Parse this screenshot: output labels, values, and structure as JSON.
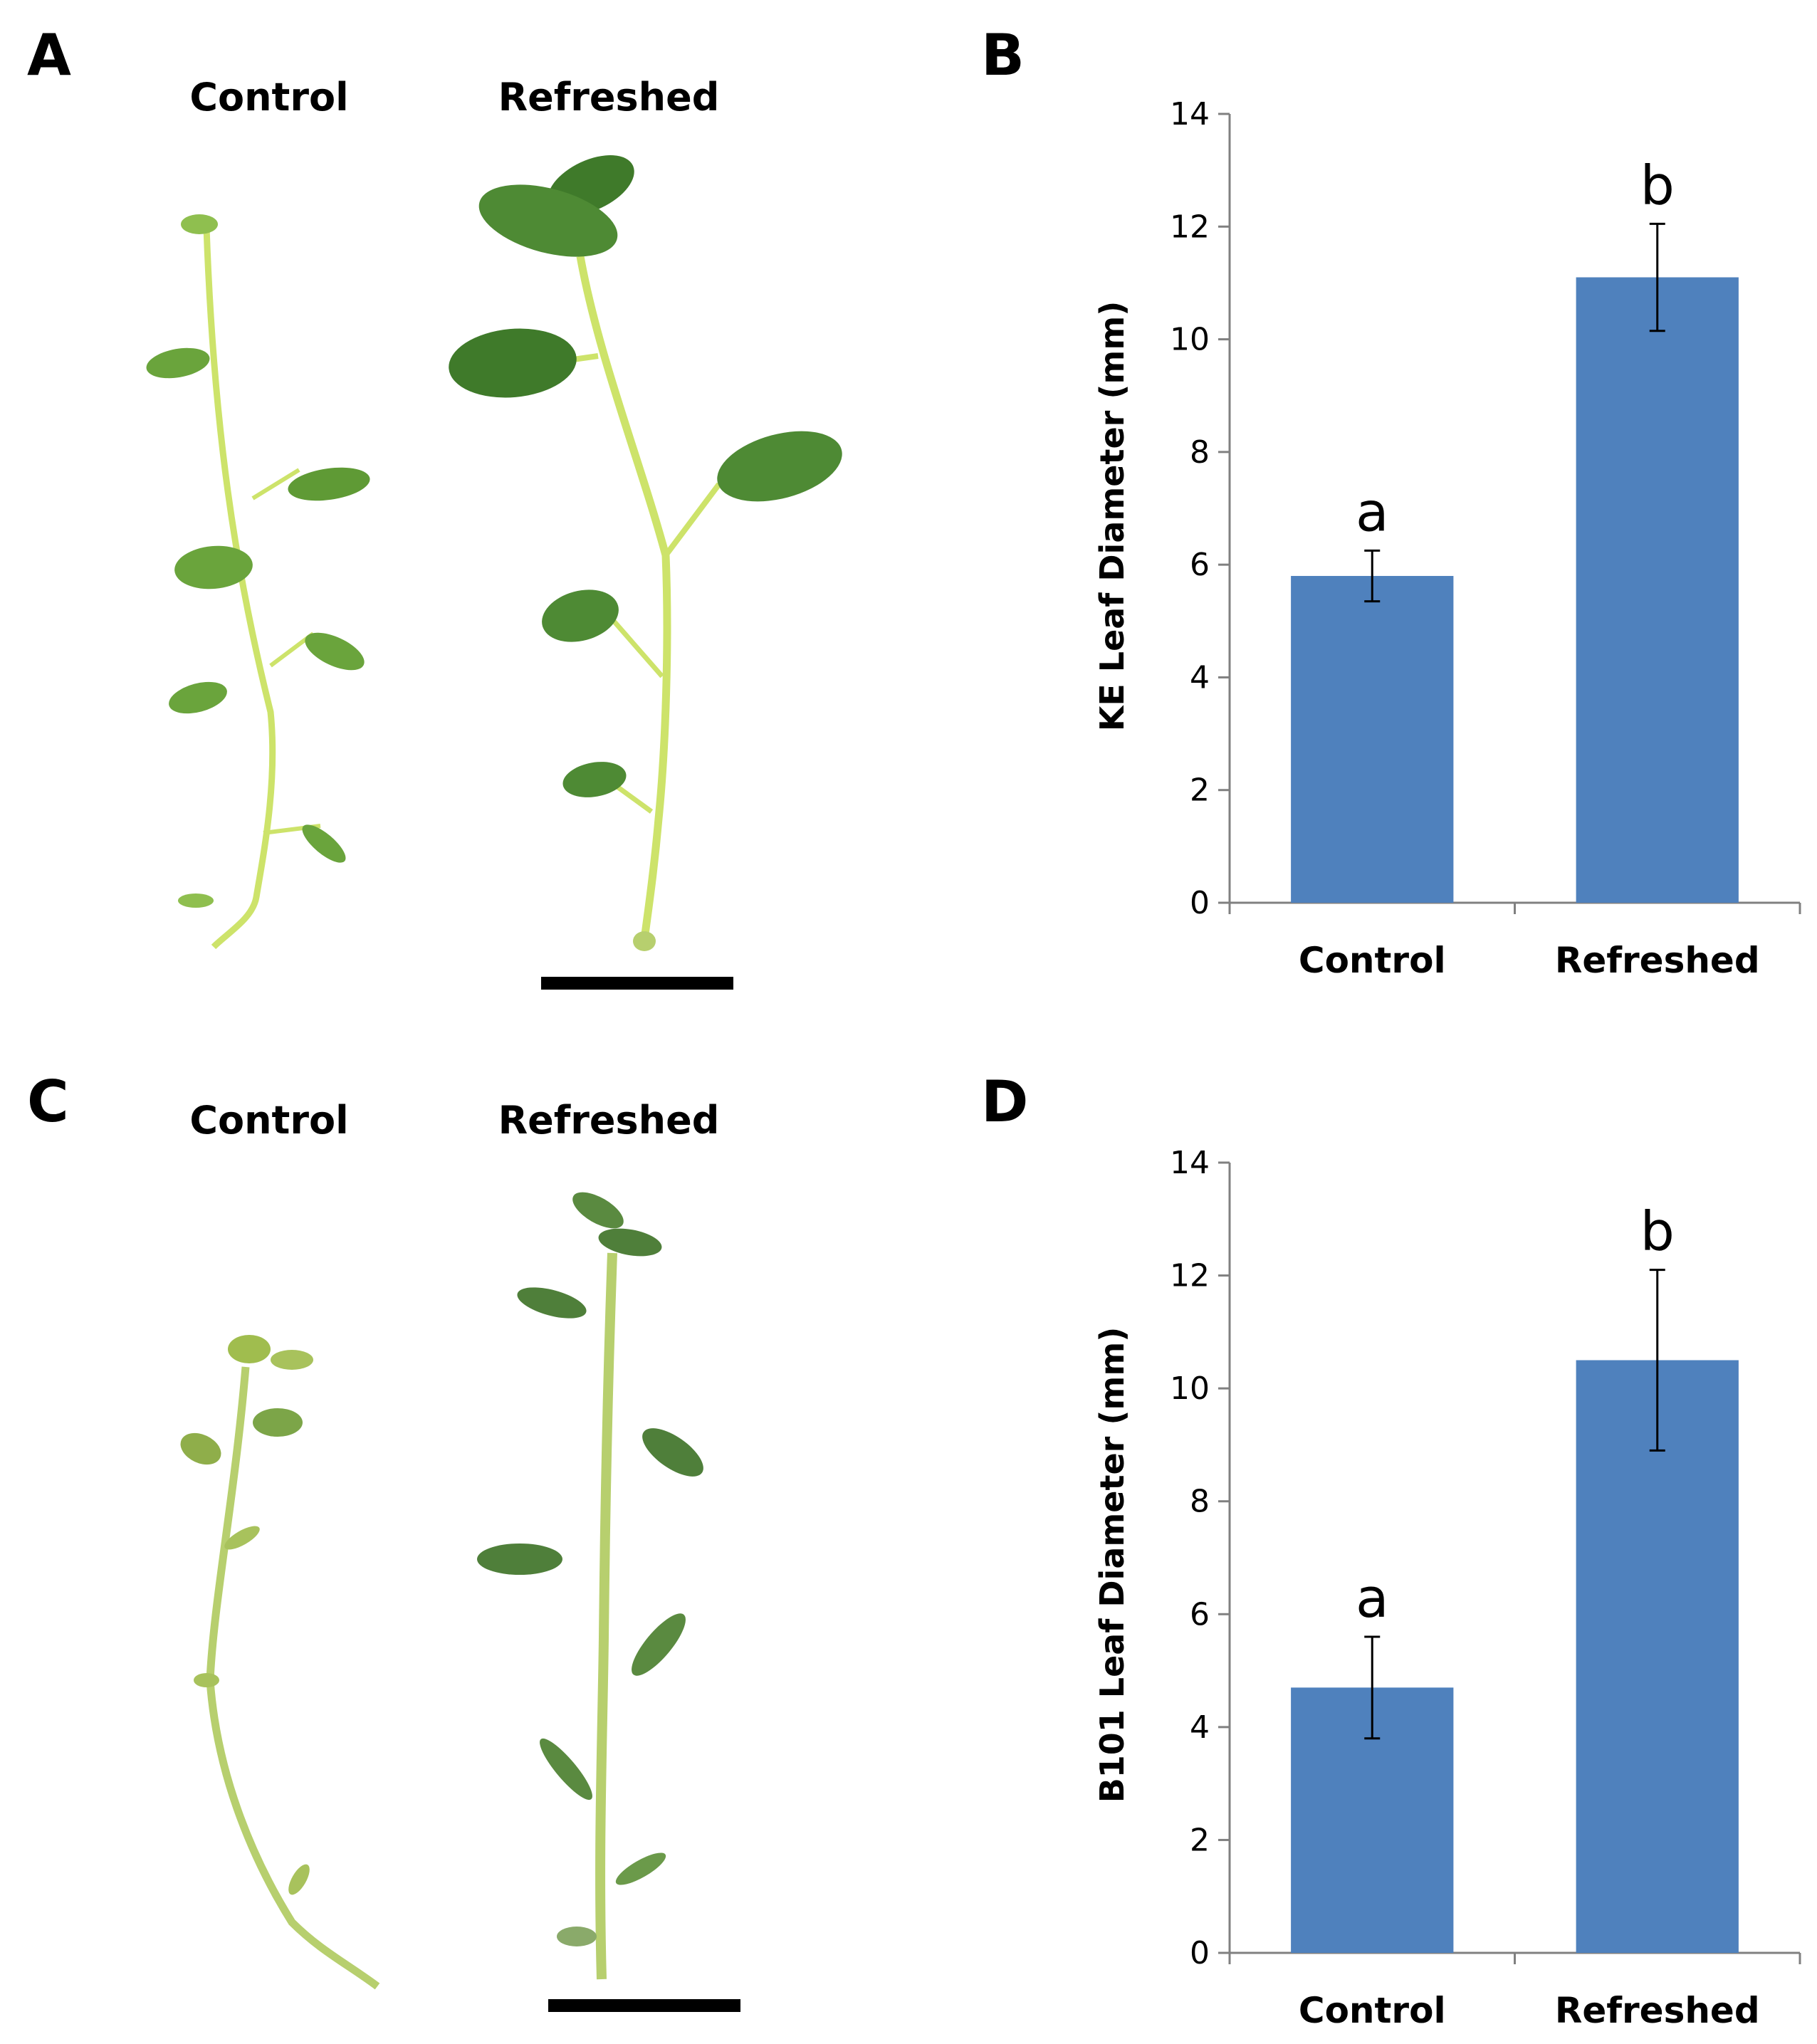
{
  "panels": {
    "a": {
      "letter": "A",
      "labels": [
        "Control",
        "Refreshed"
      ]
    },
    "b": {
      "letter": "B"
    },
    "c": {
      "letter": "C",
      "labels": [
        "Control",
        "Refreshed"
      ]
    },
    "d": {
      "letter": "D"
    }
  },
  "colors": {
    "bar": "#4F81BD",
    "leaf_dark": "#3f7a2a",
    "leaf_light": "#6aa43c",
    "stem_light": "#cde36a",
    "stem_dark": "#b7cf6e",
    "scale_bar": "#000000"
  },
  "chart_data": [
    {
      "panel": "B",
      "type": "bar",
      "categories": [
        "Control",
        "Refreshed"
      ],
      "values": [
        5.8,
        11.1
      ],
      "errors": [
        0.45,
        0.95
      ],
      "significance": [
        "a",
        "b"
      ],
      "ylabel": "KE Leaf Diameter (mm)",
      "xlabel": "",
      "ylim": [
        0,
        14
      ],
      "yticks": [
        "0",
        "2",
        "4",
        "6",
        "8",
        "10",
        "12",
        "14"
      ],
      "grid": false
    },
    {
      "panel": "D",
      "type": "bar",
      "categories": [
        "Control",
        "Refreshed"
      ],
      "values": [
        4.7,
        10.5
      ],
      "errors": [
        0.9,
        1.6
      ],
      "significance": [
        "a",
        "b"
      ],
      "ylabel": "B101 Leaf Diameter (mm)",
      "xlabel": "",
      "ylim": [
        0,
        14
      ],
      "yticks": [
        "0",
        "2",
        "4",
        "6",
        "8",
        "10",
        "12",
        "14"
      ],
      "grid": false
    }
  ]
}
